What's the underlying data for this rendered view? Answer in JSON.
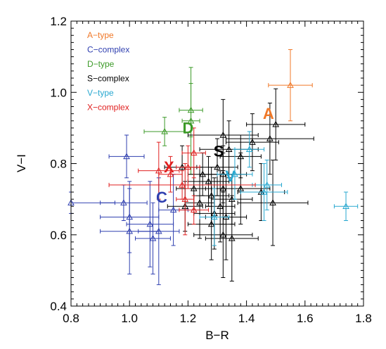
{
  "chart_data": {
    "type": "scatter",
    "xlabel": "B−R",
    "ylabel": "V−I",
    "xlim": [
      0.8,
      1.8
    ],
    "ylim": [
      0.4,
      1.2
    ],
    "xticks": [
      "0.8",
      "1.0",
      "1.2",
      "1.4",
      "1.6",
      "1.8"
    ],
    "yticks": [
      "0.4",
      "0.6",
      "0.8",
      "1.0",
      "1.2"
    ],
    "grid": false,
    "legend_position": "top-left",
    "marker": "open-triangle",
    "series": [
      {
        "name": "A−type",
        "color": "#f07828",
        "label": "A",
        "label_at": [
          1.475,
          0.925
        ],
        "points": [
          {
            "x": 1.55,
            "y": 1.02,
            "xerr": 0.075,
            "yerr": 0.1
          }
        ]
      },
      {
        "name": "C−complex",
        "color": "#3040b0",
        "label": "C",
        "label_at": [
          1.11,
          0.69
        ],
        "points": [
          {
            "x": 0.8,
            "y": 0.69,
            "xerr": 0.15,
            "yerr": 0.03
          },
          {
            "x": 0.98,
            "y": 0.69,
            "xerr": 0.08,
            "yerr": 0.05
          },
          {
            "x": 0.99,
            "y": 0.82,
            "xerr": 0.06,
            "yerr": 0.06
          },
          {
            "x": 1.0,
            "y": 0.65,
            "xerr": 0.1,
            "yerr": 0.1
          },
          {
            "x": 1.0,
            "y": 0.61,
            "xerr": 0.1,
            "yerr": 0.12
          },
          {
            "x": 1.07,
            "y": 0.63,
            "xerr": 0.08,
            "yerr": 0.12
          },
          {
            "x": 1.08,
            "y": 0.59,
            "xerr": 0.06,
            "yerr": 0.1
          },
          {
            "x": 1.1,
            "y": 0.61,
            "xerr": 0.07,
            "yerr": 0.15
          },
          {
            "x": 1.15,
            "y": 0.67,
            "xerr": 0.05,
            "yerr": 0.1
          }
        ]
      },
      {
        "name": "D−type",
        "color": "#3c9a28",
        "label": "D",
        "label_at": [
          1.2,
          0.885
        ],
        "points": [
          {
            "x": 1.12,
            "y": 0.89,
            "xerr": 0.07,
            "yerr": 0.04
          },
          {
            "x": 1.21,
            "y": 0.95,
            "xerr": 0.04,
            "yerr": 0.075
          },
          {
            "x": 1.21,
            "y": 0.92,
            "xerr": 0.03,
            "yerr": 0.15
          }
        ]
      },
      {
        "name": "S−complex",
        "color": "#000000",
        "label": "S",
        "label_at": [
          1.305,
          0.82
        ],
        "points": [
          {
            "x": 1.5,
            "y": 0.91,
            "xerr": 0.1,
            "yerr": 0.1
          },
          {
            "x": 1.48,
            "y": 0.87,
            "xerr": 0.15,
            "yerr": 0.1
          },
          {
            "x": 1.42,
            "y": 0.86,
            "xerr": 0.09,
            "yerr": 0.08
          },
          {
            "x": 1.32,
            "y": 0.88,
            "xerr": 0.12,
            "yerr": 0.1
          },
          {
            "x": 1.34,
            "y": 0.84,
            "xerr": 0.1,
            "yerr": 0.08
          },
          {
            "x": 1.38,
            "y": 0.82,
            "xerr": 0.07,
            "yerr": 0.06
          },
          {
            "x": 1.3,
            "y": 0.79,
            "xerr": 0.07,
            "yerr": 0.08
          },
          {
            "x": 1.25,
            "y": 0.77,
            "xerr": 0.05,
            "yerr": 0.06
          },
          {
            "x": 1.18,
            "y": 0.79,
            "xerr": 0.06,
            "yerr": 0.06
          },
          {
            "x": 1.32,
            "y": 0.77,
            "xerr": 0.08,
            "yerr": 0.08
          },
          {
            "x": 1.27,
            "y": 0.75,
            "xerr": 0.07,
            "yerr": 0.07
          },
          {
            "x": 1.22,
            "y": 0.73,
            "xerr": 0.06,
            "yerr": 0.06
          },
          {
            "x": 1.32,
            "y": 0.73,
            "xerr": 0.06,
            "yerr": 0.1
          },
          {
            "x": 1.38,
            "y": 0.73,
            "xerr": 0.1,
            "yerr": 0.1
          },
          {
            "x": 1.28,
            "y": 0.71,
            "xerr": 0.06,
            "yerr": 0.08
          },
          {
            "x": 1.45,
            "y": 0.72,
            "xerr": 0.08,
            "yerr": 0.08
          },
          {
            "x": 1.35,
            "y": 0.7,
            "xerr": 0.07,
            "yerr": 0.07
          },
          {
            "x": 1.49,
            "y": 0.69,
            "xerr": 0.12,
            "yerr": 0.12
          },
          {
            "x": 1.24,
            "y": 0.69,
            "xerr": 0.05,
            "yerr": 0.1
          },
          {
            "x": 1.19,
            "y": 0.68,
            "xerr": 0.06,
            "yerr": 0.07
          },
          {
            "x": 1.31,
            "y": 0.68,
            "xerr": 0.05,
            "yerr": 0.1
          },
          {
            "x": 1.29,
            "y": 0.66,
            "xerr": 0.07,
            "yerr": 0.1
          },
          {
            "x": 1.33,
            "y": 0.65,
            "xerr": 0.07,
            "yerr": 0.12
          },
          {
            "x": 1.28,
            "y": 0.63,
            "xerr": 0.08,
            "yerr": 0.1
          },
          {
            "x": 1.32,
            "y": 0.6,
            "xerr": 0.1,
            "yerr": 0.12
          },
          {
            "x": 1.35,
            "y": 0.59,
            "xerr": 0.09,
            "yerr": 0.12
          }
        ]
      },
      {
        "name": "V−type",
        "color": "#28a8d0",
        "label": "V",
        "label_at": [
          1.345,
          0.75
        ],
        "points": [
          {
            "x": 1.74,
            "y": 0.68,
            "xerr": 0.04,
            "yerr": 0.04
          },
          {
            "x": 1.41,
            "y": 0.84,
            "xerr": 0.05,
            "yerr": 0.05
          },
          {
            "x": 1.46,
            "y": 0.72,
            "xerr": 0.08,
            "yerr": 0.08
          },
          {
            "x": 1.47,
            "y": 0.74,
            "xerr": 0.05,
            "yerr": 0.07
          },
          {
            "x": 1.36,
            "y": 0.77,
            "xerr": 0.06,
            "yerr": 0.07
          },
          {
            "x": 1.29,
            "y": 0.65,
            "xerr": 0.05,
            "yerr": 0.08
          }
        ]
      },
      {
        "name": "X−complex",
        "color": "#e02020",
        "label": "X",
        "label_at": [
          1.135,
          0.775
        ],
        "points": [
          {
            "x": 1.1,
            "y": 0.78,
            "xerr": 0.07,
            "yerr": 0.08
          },
          {
            "x": 1.14,
            "y": 0.77,
            "xerr": 0.04,
            "yerr": 0.05
          },
          {
            "x": 1.2,
            "y": 0.79,
            "xerr": 0.04,
            "yerr": 0.06
          },
          {
            "x": 1.22,
            "y": 0.83,
            "xerr": 0.04,
            "yerr": 0.07
          },
          {
            "x": 1.18,
            "y": 0.74,
            "xerr": 0.25,
            "yerr": 0.04
          },
          {
            "x": 1.19,
            "y": 0.7,
            "xerr": 0.03,
            "yerr": 0.1
          },
          {
            "x": 1.22,
            "y": 0.67,
            "xerr": 0.05,
            "yerr": 0.04
          }
        ]
      }
    ]
  }
}
